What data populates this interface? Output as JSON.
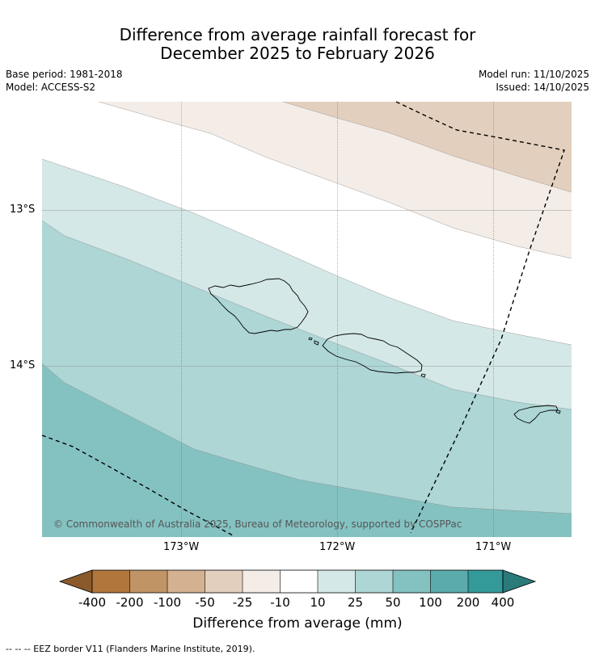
{
  "title": {
    "line1": "Difference from average rainfall forecast for",
    "line2": "December 2025 to February 2026"
  },
  "meta": {
    "base_period": "Base period: 1981-2018",
    "model": "Model: ACCESS-S2",
    "model_run": "Model run: 11/10/2025",
    "issued": "Issued: 14/10/2025"
  },
  "map": {
    "lat_labels": [
      "13°S",
      "14°S"
    ],
    "lon_labels": [
      "173°W",
      "172°W",
      "171°W"
    ],
    "copyright": "© Commonwealth of Australia 2025, Bureau of Meteorology, supported by COSPPac"
  },
  "colorbar": {
    "label": "Difference from average (mm)",
    "ticks": [
      "-400",
      "-200",
      "-100",
      "-50",
      "-25",
      "-10",
      "10",
      "25",
      "50",
      "100",
      "200",
      "400"
    ],
    "colors": {
      "lt_-400": "#8b5a2b",
      "-400_-200": "#b0763c",
      "-200_-100": "#c19466",
      "-100_-50": "#d4b190",
      "-50_-25": "#e3cfbd",
      "-25_-10": "#f4ede7",
      "-10_10": "#ffffff",
      "10_25": "#d4e8e7",
      "25_50": "#add6d5",
      "50_100": "#84c2c1",
      "100_200": "#5babab",
      "200_400": "#349999",
      "gt_400": "#2a7a7a"
    }
  },
  "legend": {
    "eez": "-- -- -- EEZ border V11 (Flanders Marine Institute, 2019)."
  }
}
